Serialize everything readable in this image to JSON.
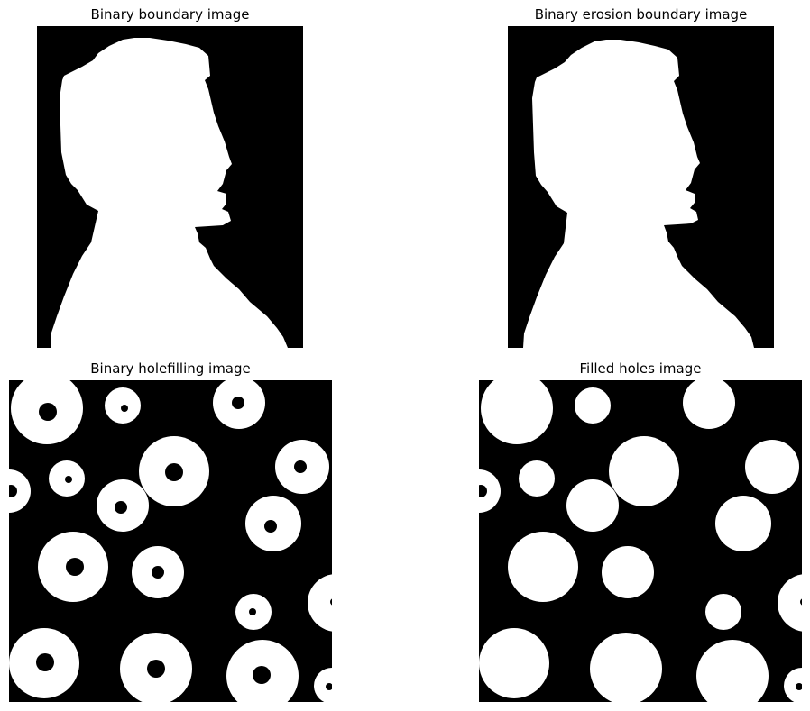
{
  "figure": {
    "panels": [
      {
        "title": "Binary boundary image",
        "content": "white human head-and-shoulders silhouette (profile facing right) on black"
      },
      {
        "title": "Binary erosion boundary image",
        "content": "same silhouette, slightly eroded"
      },
      {
        "title": "Binary holefilling image",
        "content": "white rings with black holes on black"
      },
      {
        "title": "Filled holes image",
        "content": "same rings with holes filled in white"
      }
    ],
    "colors": {
      "background": "#000000",
      "foreground": "#ffffff"
    }
  }
}
